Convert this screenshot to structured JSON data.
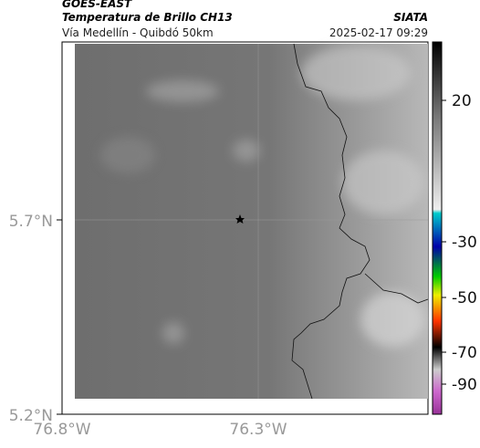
{
  "header": {
    "satellite": "GOES-EAST",
    "title": "Temperatura de Brillo CH13",
    "subtitle": "Vía Medellín - Quibdó 50km",
    "source": "SIATA",
    "timestamp": "2025-02-17 09:29"
  },
  "map": {
    "lat_labels": [
      "5.7°N",
      "5.2°N"
    ],
    "lon_labels": [
      "76.8°W",
      "76.3°W"
    ]
  },
  "colorbar": {
    "labels": [
      "20",
      "-30",
      "-50",
      "-70",
      "-90"
    ]
  }
}
